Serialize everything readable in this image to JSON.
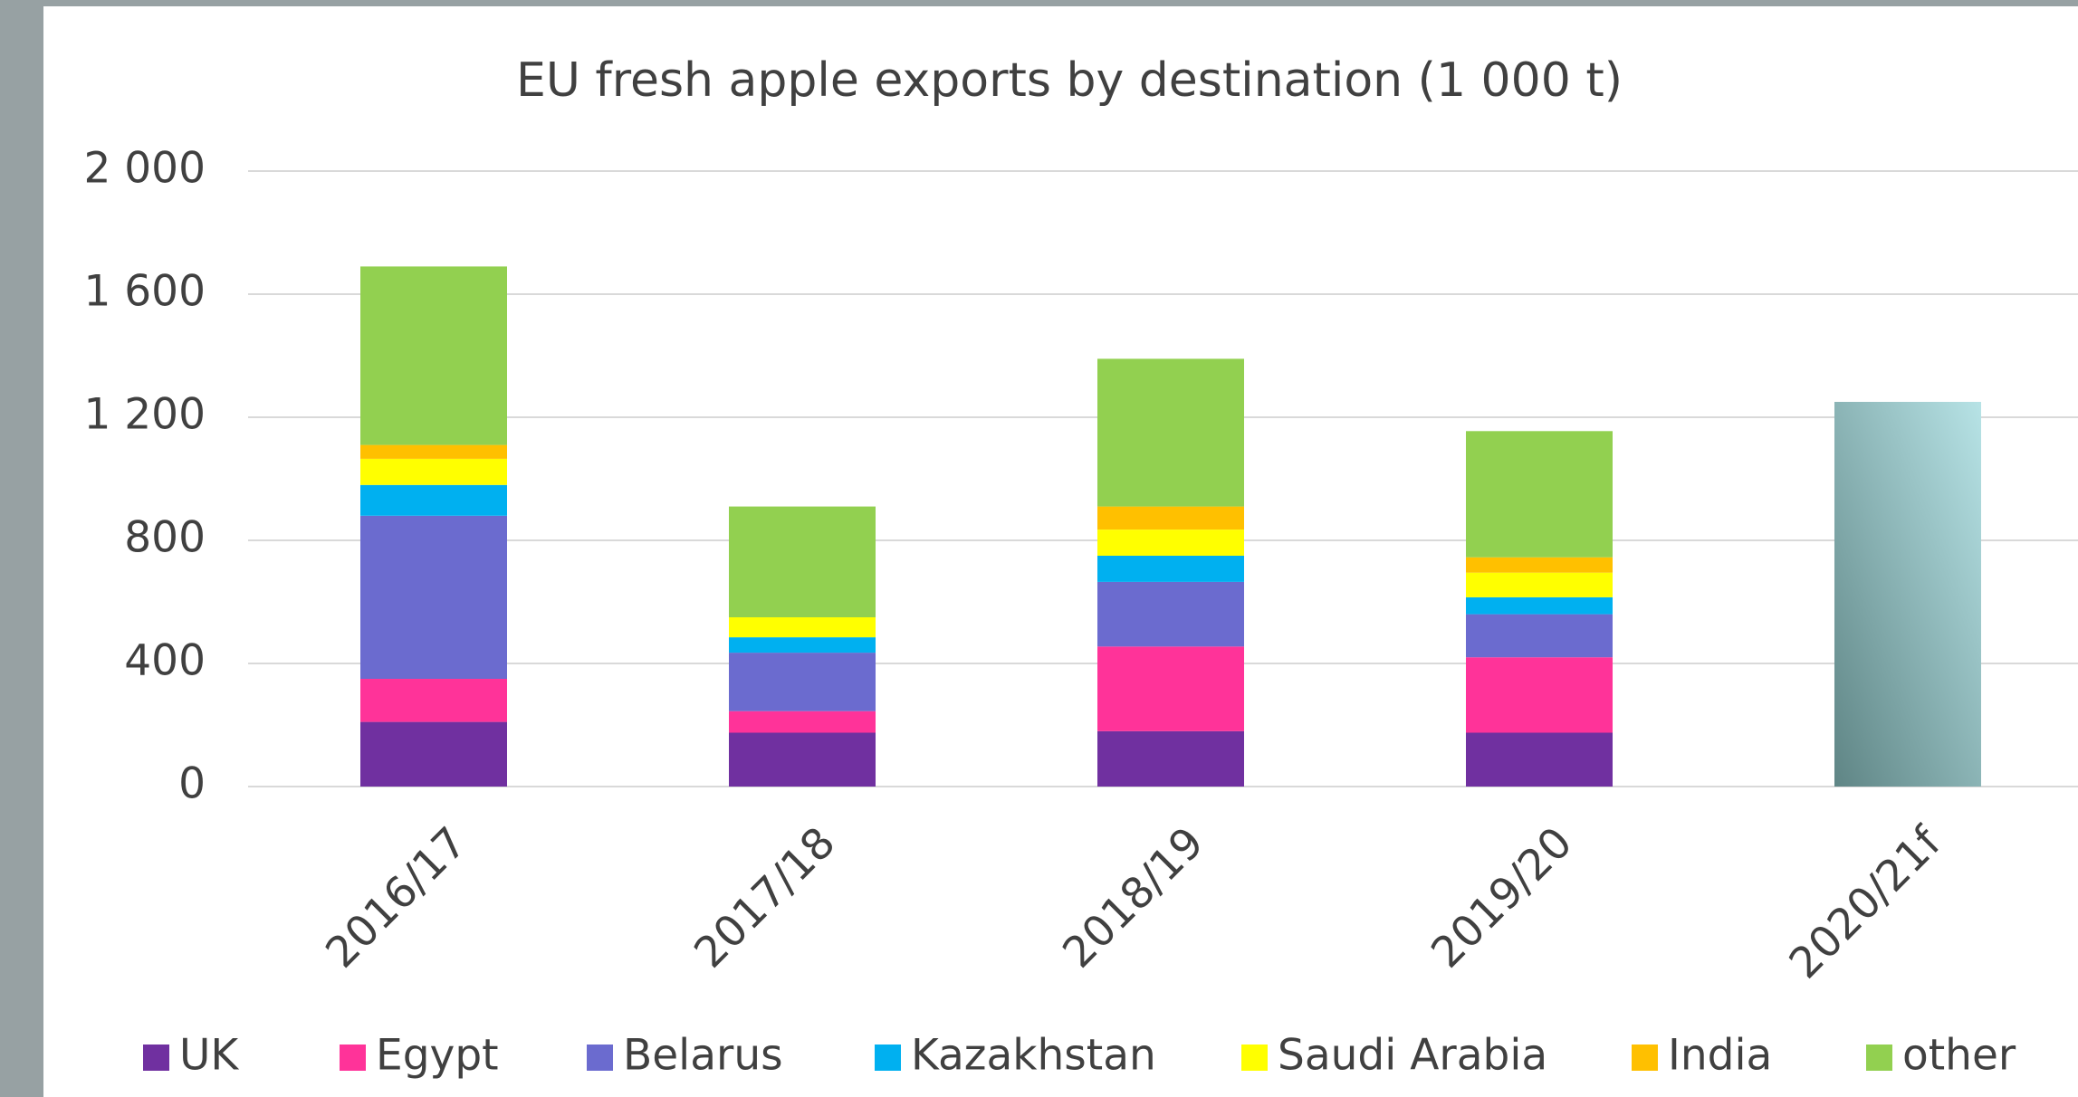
{
  "chart_data": {
    "type": "stacked-bar",
    "title": "EU fresh apple exports by destination (1 000 t)",
    "categories": [
      "2016/17",
      "2017/18",
      "2018/19",
      "2019/20",
      "2020/21f"
    ],
    "series": [
      {
        "name": "UK",
        "color": "#7030a0",
        "values": [
          210,
          175,
          180,
          175,
          null
        ]
      },
      {
        "name": "Egypt",
        "color": "#ff3399",
        "values": [
          140,
          70,
          275,
          245,
          null
        ]
      },
      {
        "name": "Belarus",
        "color": "#6b6bcf",
        "values": [
          530,
          190,
          210,
          140,
          null
        ]
      },
      {
        "name": "Kazakhstan",
        "color": "#00b0f0",
        "values": [
          100,
          50,
          85,
          55,
          null
        ]
      },
      {
        "name": "Saudi Arabia",
        "color": "#ffff00",
        "values": [
          85,
          65,
          85,
          80,
          null
        ]
      },
      {
        "name": "India",
        "color": "#ffc000",
        "values": [
          45,
          0,
          75,
          50,
          null
        ]
      },
      {
        "name": "other",
        "color": "#92d050",
        "values": [
          580,
          360,
          480,
          410,
          null
        ]
      }
    ],
    "forecast_values": [
      null,
      null,
      null,
      null,
      1250
    ],
    "forecast_colors": [
      "#5f8585",
      "#b7e3e6"
    ],
    "ylim": [
      0,
      2000
    ],
    "yticks": [
      0,
      400,
      800,
      {
        "value": 1200,
        "label": "1 200"
      },
      {
        "value": 1600,
        "label": "1 600"
      },
      {
        "value": 2000,
        "label": "2 000"
      }
    ],
    "grid": true,
    "legend": "bottom"
  }
}
